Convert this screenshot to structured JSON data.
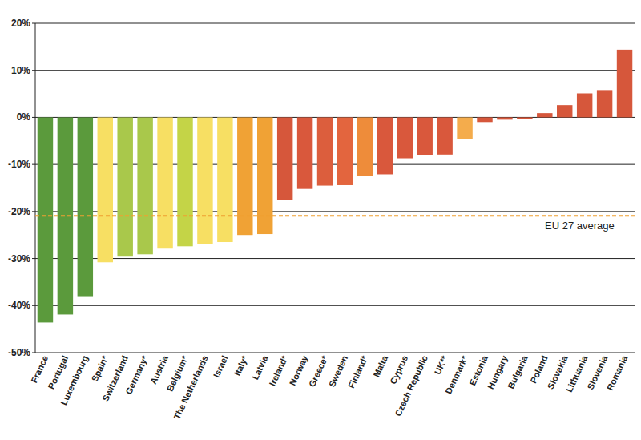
{
  "chart_data": {
    "type": "bar",
    "categories": [
      "France",
      "Portugal",
      "Luxembourg",
      "Spain*",
      "Switzerland",
      "Germany*",
      "Austria",
      "Belgium*",
      "The Netherlands",
      "Israel",
      "Italy*",
      "Latvia",
      "Ireland*",
      "Norway",
      "Greece*",
      "Sweden",
      "Finland*",
      "Malta",
      "Cyprus",
      "Czech Republic",
      "UK**",
      "Denmark*",
      "Estonia",
      "Hungary",
      "Bulgaria",
      "Poland",
      "Slovakia",
      "Lithuania",
      "Slovenia",
      "Romania"
    ],
    "values": [
      -43.6,
      -41.9,
      -38,
      -30.8,
      -29.6,
      -29.1,
      -27.9,
      -27.4,
      -27,
      -26.5,
      -25,
      -24.8,
      -17.6,
      -15.2,
      -14.5,
      -14.4,
      -12.5,
      -12.1,
      -8.7,
      -8,
      -7.9,
      -4.6,
      -1,
      -0.5,
      -0.3,
      0.9,
      2.6,
      5.1,
      5.8,
      14.4
    ],
    "colors": [
      "#5b9a3c",
      "#5b9a3c",
      "#5b9a3c",
      "#f7df63",
      "#a9c84b",
      "#a9c84b",
      "#f7df63",
      "#c4d447",
      "#f7df63",
      "#f7df63",
      "#f0a235",
      "#f0a235",
      "#d6573b",
      "#d9583c",
      "#dc5e3d",
      "#e3653e",
      "#ee8c3a",
      "#d9583c",
      "#d9583c",
      "#d9583c",
      "#d9583c",
      "#f4ac4c",
      "#d6573b",
      "#d6573b",
      "#d6573b",
      "#d6573b",
      "#d6573b",
      "#d6573b",
      "#d6573b",
      "#d6573b"
    ],
    "ylim": [
      -50,
      20
    ],
    "yticks": [
      {
        "value": 20,
        "label": "20%"
      },
      {
        "value": 10,
        "label": "10%"
      },
      {
        "value": 0,
        "label": "0%"
      },
      {
        "value": -10,
        "label": "-10%"
      },
      {
        "value": -20,
        "label": "-20%"
      },
      {
        "value": -30,
        "label": "-30%"
      },
      {
        "value": -40,
        "label": "-40%"
      },
      {
        "value": -50,
        "label": "-50%"
      }
    ],
    "grid": true,
    "reference_line": {
      "value": -20.9,
      "label": "EU 27 average"
    }
  }
}
